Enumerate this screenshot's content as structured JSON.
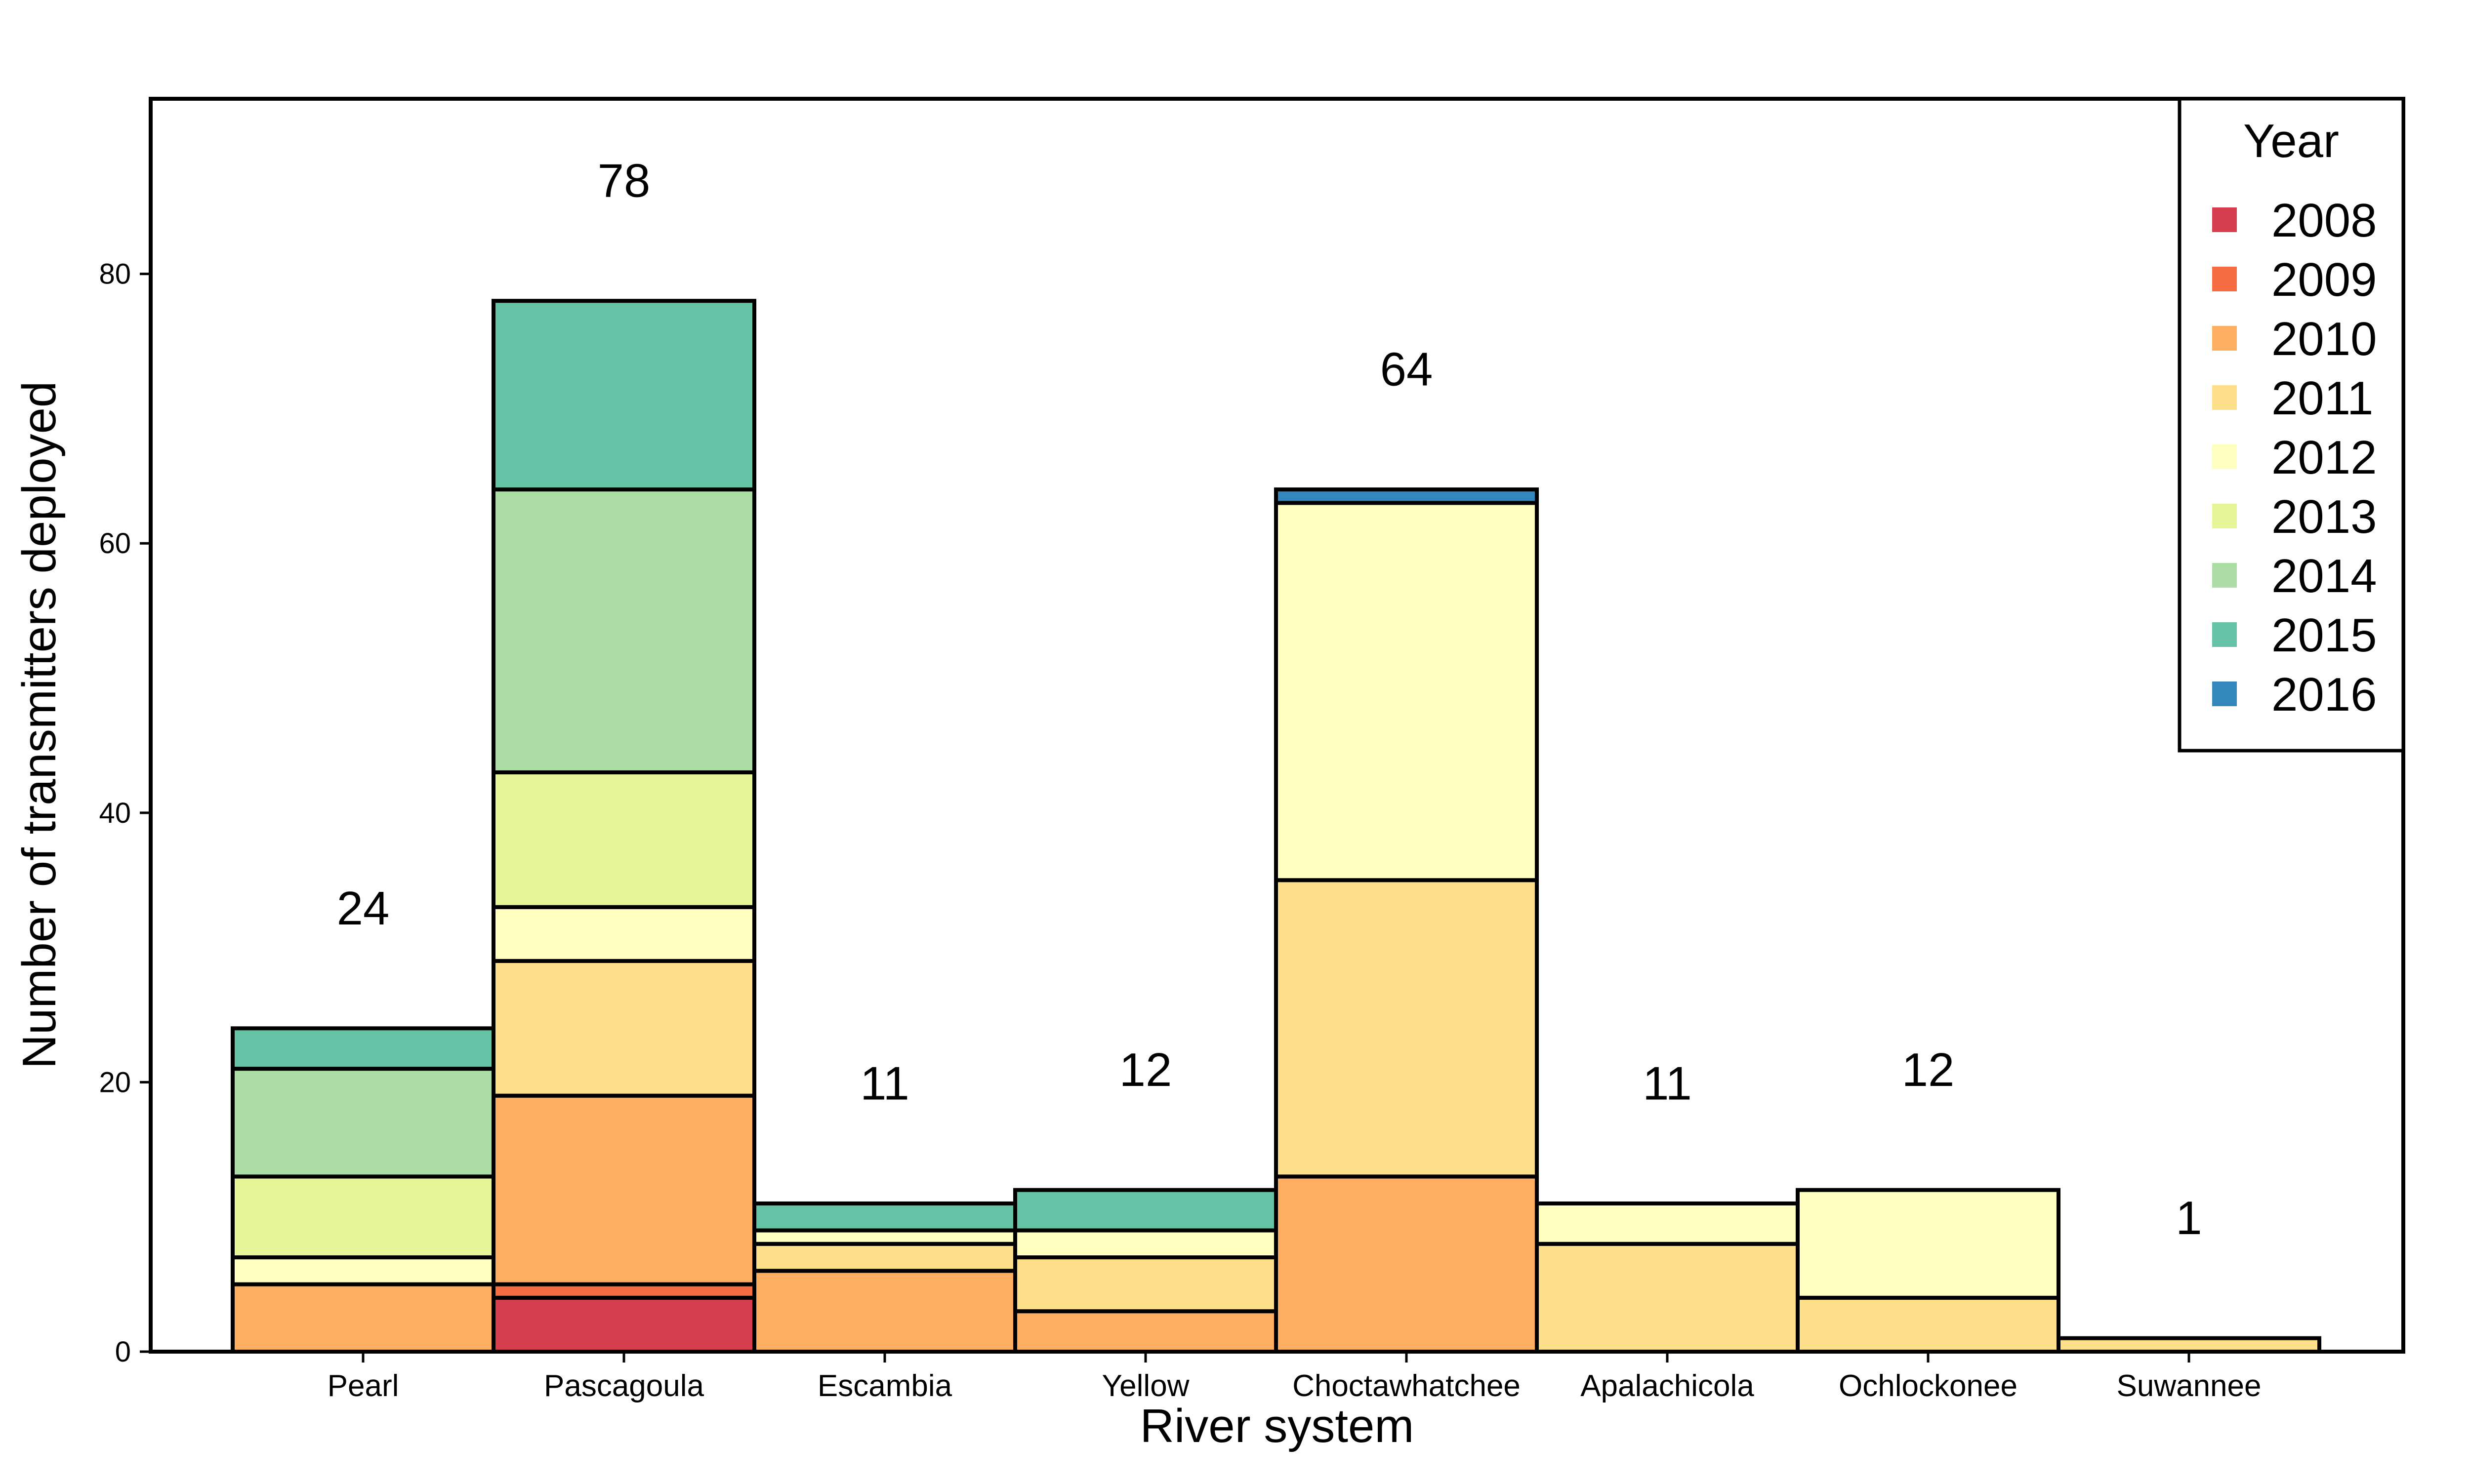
{
  "chart_data": {
    "type": "bar",
    "stacked": true,
    "xlabel": "River system",
    "ylabel": "Number of transmitters deployed",
    "ylim": [
      0,
      93
    ],
    "yticks": [
      0,
      20,
      40,
      60,
      80
    ],
    "grid": false,
    "legend": {
      "title": "Year",
      "placement": "top-right"
    },
    "categories": [
      "Pearl",
      "Pascagoula",
      "Escambia",
      "Yellow",
      "Choctawhatchee",
      "Apalachicola",
      "Ochlockonee",
      "Suwannee"
    ],
    "totals": [
      24,
      78,
      11,
      12,
      64,
      11,
      12,
      1
    ],
    "series": [
      {
        "name": "2008",
        "color": "#D53E4F",
        "values": [
          0,
          4,
          0,
          0,
          0,
          0,
          0,
          0
        ]
      },
      {
        "name": "2009",
        "color": "#F46D43",
        "values": [
          0,
          1,
          0,
          0,
          0,
          0,
          0,
          0
        ]
      },
      {
        "name": "2010",
        "color": "#FDAE61",
        "values": [
          5,
          14,
          6,
          3,
          13,
          0,
          0,
          0
        ]
      },
      {
        "name": "2011",
        "color": "#FEE08B",
        "values": [
          0,
          10,
          2,
          4,
          22,
          8,
          4,
          1
        ]
      },
      {
        "name": "2012",
        "color": "#FFFFBF",
        "values": [
          2,
          4,
          1,
          2,
          28,
          3,
          8,
          0
        ]
      },
      {
        "name": "2013",
        "color": "#E6F598",
        "values": [
          6,
          10,
          0,
          0,
          0,
          0,
          0,
          0
        ]
      },
      {
        "name": "2014",
        "color": "#ABDDA4",
        "values": [
          8,
          21,
          0,
          0,
          0,
          0,
          0,
          0
        ]
      },
      {
        "name": "2015",
        "color": "#66C2A5",
        "values": [
          3,
          14,
          2,
          3,
          0,
          0,
          0,
          0
        ]
      },
      {
        "name": "2016",
        "color": "#3288BD",
        "values": [
          0,
          0,
          0,
          0,
          1,
          0,
          0,
          0
        ]
      }
    ]
  }
}
